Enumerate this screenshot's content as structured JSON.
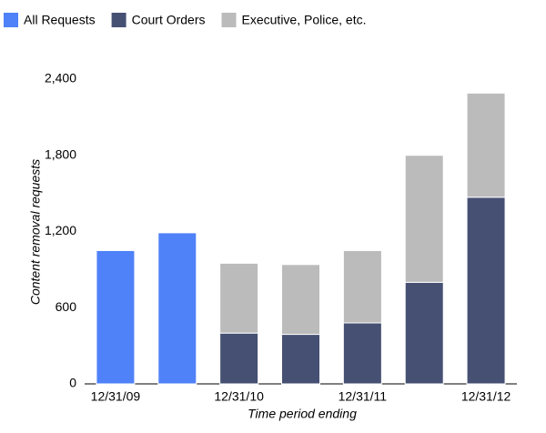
{
  "chart_data": {
    "type": "stacked-bar",
    "categories": [
      "12/31/09",
      null,
      "12/31/10",
      null,
      "12/31/11",
      null,
      "12/31/12"
    ],
    "series": [
      {
        "name": "All Requests",
        "color": "#4f81f8",
        "values": [
          1050,
          1190,
          null,
          null,
          null,
          null,
          null
        ]
      },
      {
        "name": "Court Orders",
        "color": "#465073",
        "values": [
          null,
          null,
          400,
          390,
          480,
          800,
          1470
        ]
      },
      {
        "name": "Executive, Police, etc.",
        "color": "#bbbbbb",
        "values": [
          null,
          null,
          550,
          550,
          570,
          1000,
          820
        ]
      }
    ],
    "ylim": [
      0,
      2400
    ],
    "yticks": [
      0,
      600,
      {
        "value": 1200,
        "label": "1,200"
      },
      {
        "value": 1800,
        "label": "1,800"
      },
      {
        "value": 2400,
        "label": "2,400"
      }
    ],
    "ylabel": "Content removal requests",
    "xlabel": "Time period ending",
    "legend": "top-left",
    "grid": false
  }
}
